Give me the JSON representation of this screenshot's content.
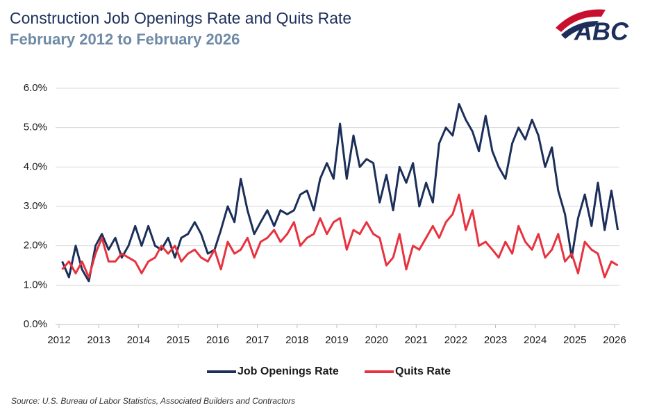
{
  "logo": "ABC",
  "chart_data": {
    "type": "line",
    "title": "Construction Job Openings Rate and Quits Rate",
    "subtitle": "February 2012 to February 2026",
    "source": "Source: U.S. Bureau of Labor Statistics, Associated Builders and Contractors",
    "x": [
      2012.08,
      2012.25,
      2012.42,
      2012.58,
      2012.75,
      2012.92,
      2013.08,
      2013.25,
      2013.42,
      2013.58,
      2013.75,
      2013.92,
      2014.08,
      2014.25,
      2014.42,
      2014.58,
      2014.75,
      2014.92,
      2015.08,
      2015.25,
      2015.42,
      2015.58,
      2015.75,
      2015.92,
      2016.08,
      2016.25,
      2016.42,
      2016.58,
      2016.75,
      2016.92,
      2017.08,
      2017.25,
      2017.42,
      2017.58,
      2017.75,
      2017.92,
      2018.08,
      2018.25,
      2018.42,
      2018.58,
      2018.75,
      2018.92,
      2019.08,
      2019.25,
      2019.42,
      2019.58,
      2019.75,
      2019.92,
      2020.08,
      2020.25,
      2020.42,
      2020.58,
      2020.75,
      2020.92,
      2021.08,
      2021.25,
      2021.42,
      2021.58,
      2021.75,
      2021.92,
      2022.08,
      2022.25,
      2022.42,
      2022.58,
      2022.75,
      2022.92,
      2023.08,
      2023.25,
      2023.42,
      2023.58,
      2023.75,
      2023.92,
      2024.08,
      2024.25,
      2024.42,
      2024.58,
      2024.75,
      2024.92,
      2025.08,
      2025.25,
      2025.42,
      2025.58,
      2025.75,
      2025.92,
      2026.08
    ],
    "series": [
      {
        "name": "Job Openings Rate",
        "color": "#1c2f5a",
        "values": [
          1.6,
          1.2,
          2.0,
          1.4,
          1.1,
          2.0,
          2.3,
          1.9,
          2.2,
          1.7,
          2.0,
          2.5,
          2.0,
          2.5,
          2.0,
          1.9,
          2.2,
          1.7,
          2.2,
          2.3,
          2.6,
          2.3,
          1.8,
          1.9,
          2.4,
          3.0,
          2.6,
          3.7,
          2.9,
          2.3,
          2.6,
          2.9,
          2.5,
          2.9,
          2.8,
          2.9,
          3.3,
          3.4,
          2.9,
          3.7,
          4.1,
          3.7,
          5.1,
          3.7,
          4.8,
          4.0,
          4.2,
          4.1,
          3.1,
          3.8,
          2.9,
          4.0,
          3.6,
          4.1,
          3.0,
          3.6,
          3.1,
          4.6,
          5.0,
          4.8,
          5.6,
          5.2,
          4.9,
          4.4,
          5.3,
          4.4,
          4.0,
          3.7,
          4.6,
          5.0,
          4.7,
          5.2,
          4.8,
          4.0,
          4.5,
          3.4,
          2.8,
          1.7,
          2.7,
          3.3,
          2.5,
          3.6,
          2.4,
          3.4,
          2.4
        ]
      },
      {
        "name": "Quits Rate",
        "color": "#e8323f",
        "values": [
          1.4,
          1.6,
          1.3,
          1.6,
          1.2,
          1.8,
          2.2,
          1.6,
          1.6,
          1.8,
          1.7,
          1.6,
          1.3,
          1.6,
          1.7,
          2.0,
          1.8,
          2.0,
          1.6,
          1.8,
          1.9,
          1.7,
          1.6,
          1.9,
          1.4,
          2.1,
          1.8,
          1.9,
          2.2,
          1.7,
          2.1,
          2.2,
          2.4,
          2.1,
          2.3,
          2.6,
          2.0,
          2.2,
          2.3,
          2.7,
          2.3,
          2.6,
          2.7,
          1.9,
          2.4,
          2.3,
          2.6,
          2.3,
          2.2,
          1.5,
          1.7,
          2.3,
          1.4,
          2.0,
          1.9,
          2.2,
          2.5,
          2.2,
          2.6,
          2.8,
          3.3,
          2.4,
          2.9,
          2.0,
          2.1,
          1.9,
          1.7,
          2.1,
          1.8,
          2.5,
          2.1,
          1.9,
          2.3,
          1.7,
          1.9,
          2.3,
          1.6,
          1.8,
          1.3,
          2.1,
          1.9,
          1.8,
          1.2,
          1.6,
          1.5
        ]
      }
    ],
    "xlim": [
      2012,
      2026.1
    ],
    "xticks": [
      2012,
      2013,
      2014,
      2015,
      2016,
      2017,
      2018,
      2019,
      2020,
      2021,
      2022,
      2023,
      2024,
      2025,
      2026
    ],
    "ylim": [
      0,
      6
    ],
    "yticks": [
      {
        "value": 0,
        "label": "0.0%"
      },
      {
        "value": 1,
        "label": "1.0%"
      },
      {
        "value": 2,
        "label": "2.0%"
      },
      {
        "value": 3,
        "label": "3.0%"
      },
      {
        "value": 4,
        "label": "4.0%"
      },
      {
        "value": 5,
        "label": "5.0%"
      },
      {
        "value": 6,
        "label": "6.0%"
      }
    ],
    "grid": true
  }
}
